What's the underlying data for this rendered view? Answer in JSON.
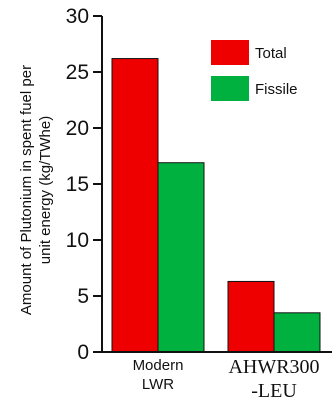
{
  "chart_data": {
    "type": "bar",
    "categories": [
      [
        "Modern",
        "LWR"
      ],
      [
        "AHWR300",
        "-LEU"
      ]
    ],
    "series": [
      {
        "name": "Total",
        "color": "#ee0000",
        "values": [
          26.2,
          6.3
        ]
      },
      {
        "name": "Fissile",
        "color": "#00b140",
        "values": [
          16.9,
          3.5
        ]
      }
    ],
    "title": "",
    "xlabel": "",
    "ylabel": [
      "Amount of Plutonium in spent fuel per",
      "unit energy (kg/TWhe)"
    ],
    "ylim": [
      0,
      30
    ],
    "yticks": [
      0,
      5,
      10,
      15,
      20,
      25,
      30
    ],
    "grid": false,
    "legend_position": "top-right"
  }
}
